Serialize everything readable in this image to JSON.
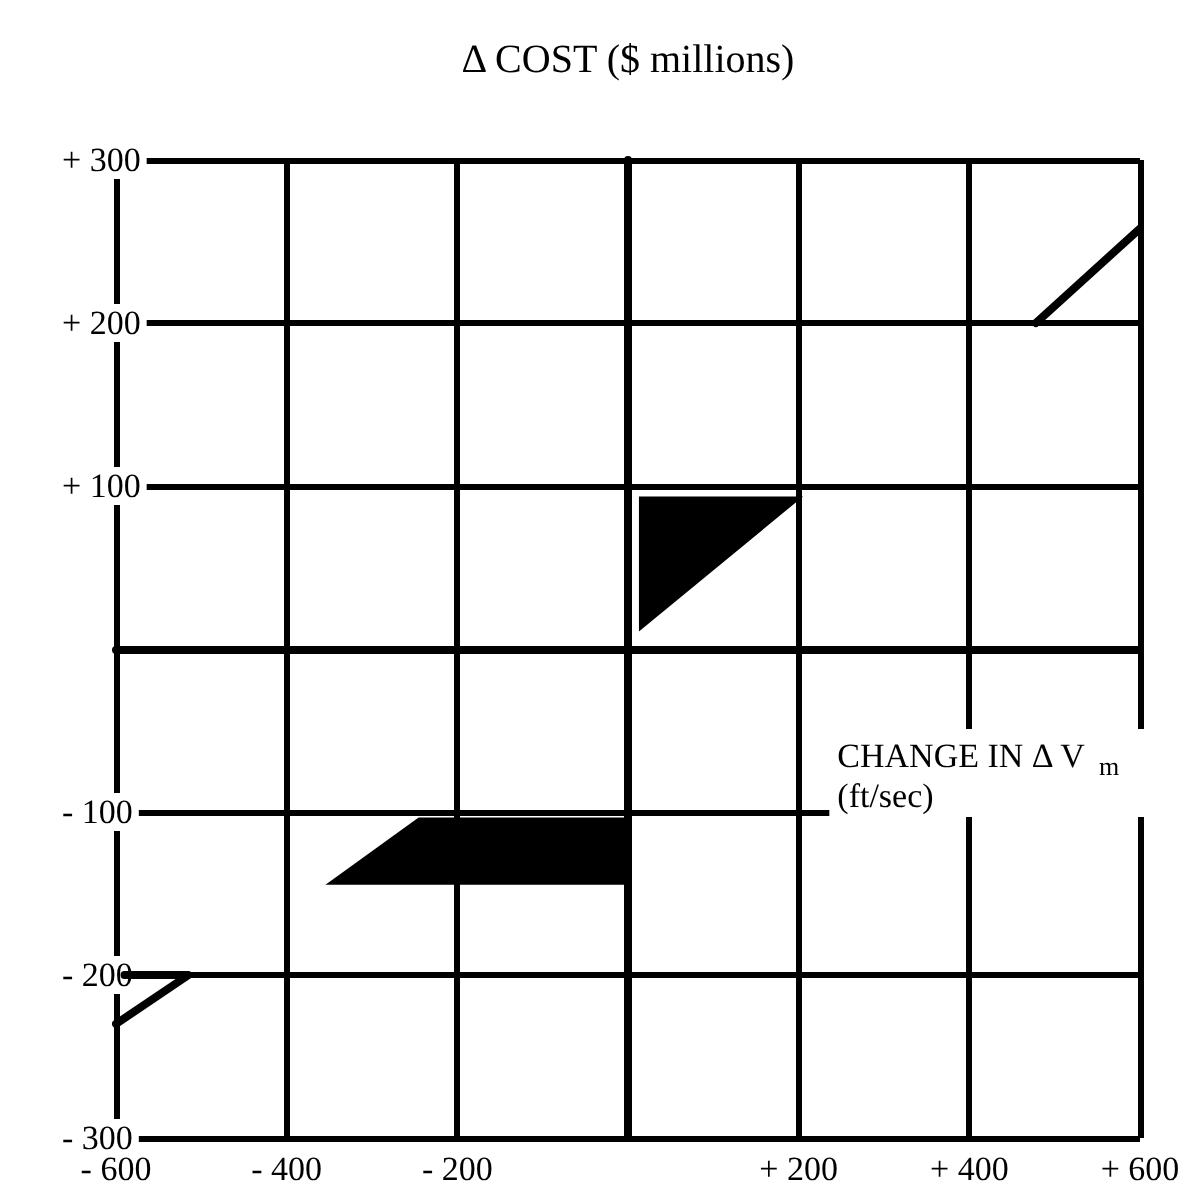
{
  "chart_data": {
    "type": "line",
    "ylabel": "Δ COST ($ millions)",
    "xlabel": "CHANGE IN Δ V$_{m}$ (ft/sec)",
    "xlim": [
      -600,
      600
    ],
    "ylim": [
      -300,
      300
    ],
    "xticks": [
      {
        "value": -600,
        "label": "- 600"
      },
      {
        "value": -400,
        "label": "- 400"
      },
      {
        "value": -200,
        "label": "- 200"
      },
      {
        "value": 0,
        "label": null
      },
      {
        "value": 200,
        "label": "+ 200"
      },
      {
        "value": 400,
        "label": "+ 400"
      },
      {
        "value": 600,
        "label": "+ 600"
      }
    ],
    "yticks": [
      {
        "value": -300,
        "label": "- 300"
      },
      {
        "value": -200,
        "label": "- 200"
      },
      {
        "value": -100,
        "label": "- 100"
      },
      {
        "value": 0,
        "label": null
      },
      {
        "value": 100,
        "label": "+ 100"
      },
      {
        "value": 200,
        "label": "+ 200"
      },
      {
        "value": 300,
        "label": "+ 300"
      }
    ],
    "grid": true,
    "marker": "none",
    "line_style": "solid",
    "series": [
      {
        "type": "line",
        "color": "#000000",
        "x": [
          478,
          600
        ],
        "values": [
          200,
          258
        ]
      },
      {
        "type": "area",
        "color": "#000000",
        "x": [
          14,
          202,
          14
        ],
        "values": [
          93,
          93,
          12
        ]
      },
      {
        "type": "area",
        "color": "#000000",
        "x": [
          -351,
          -245,
          0,
          0
        ],
        "values": [
          -144,
          -104,
          -104,
          -144
        ]
      },
      {
        "color": "#000000",
        "x": [
          -600,
          -515,
          -590
        ],
        "values": [
          -230,
          -200,
          -200
        ]
      }
    ]
  }
}
